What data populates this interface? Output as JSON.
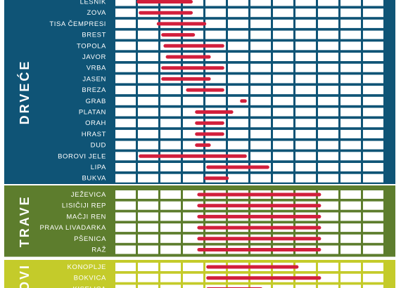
{
  "colors": {
    "bar": "#d21f3c",
    "cell": "#ffffff",
    "label_text": "#ffffff"
  },
  "chart_data": {
    "type": "bar",
    "x_units": "calendar periods (12 columns visible)",
    "columns": 12,
    "groups": [
      {
        "name": "DRVEĆE",
        "color": "#0f5476",
        "rows": [
          {
            "label": "LESNIK",
            "start": 1.0,
            "end": 3.5
          },
          {
            "label": "ZOVA",
            "start": 1.1,
            "end": 3.5
          },
          {
            "label": "TISA ČEMPRESI",
            "start": 1.9,
            "end": 4.1
          },
          {
            "label": "BREST",
            "start": 2.1,
            "end": 3.6
          },
          {
            "label": "TOPOLA",
            "start": 2.2,
            "end": 4.9
          },
          {
            "label": "JAVOR",
            "start": 2.3,
            "end": 4.3
          },
          {
            "label": "VRBA",
            "start": 2.1,
            "end": 4.9
          },
          {
            "label": "JASEN",
            "start": 2.1,
            "end": 4.3
          },
          {
            "label": "BREZA",
            "start": 3.2,
            "end": 4.9
          },
          {
            "label": "GRAB",
            "start": 5.6,
            "end": 5.9
          },
          {
            "label": "PLATAN",
            "start": 3.6,
            "end": 5.3
          },
          {
            "label": "ORAH",
            "start": 3.6,
            "end": 4.9
          },
          {
            "label": "HRAST",
            "start": 3.6,
            "end": 4.9
          },
          {
            "label": "DUD",
            "start": 3.6,
            "end": 4.3
          },
          {
            "label": "BOROVI JELE",
            "start": 1.1,
            "end": 5.9
          },
          {
            "label": "LIPA",
            "start": 4.1,
            "end": 6.9
          },
          {
            "label": "BUKVA",
            "start": 4.0,
            "end": 5.1
          }
        ]
      },
      {
        "name": "TRAVE",
        "color": "#5d7d2d",
        "rows": [
          {
            "label": "JEŽEVICA",
            "start": 3.7,
            "end": 9.2
          },
          {
            "label": "LISIČIJI REP",
            "start": 3.7,
            "end": 9.2
          },
          {
            "label": "MAČJI REN",
            "start": 3.7,
            "end": 9.2
          },
          {
            "label": "PRAVA LIVADARKA",
            "start": 3.7,
            "end": 9.2
          },
          {
            "label": "PŠENICA",
            "start": 3.7,
            "end": 9.2
          },
          {
            "label": "RAŽ",
            "start": 3.7,
            "end": 9.2
          }
        ]
      },
      {
        "name": "OVI",
        "color": "#c4cb2a",
        "rows": [
          {
            "label": "KONOPLJE",
            "start": 4.1,
            "end": 8.2
          },
          {
            "label": "BOKVICA",
            "start": 4.1,
            "end": 9.2
          },
          {
            "label": "KISELICA",
            "start": 4.1,
            "end": 6.6
          }
        ]
      }
    ]
  }
}
